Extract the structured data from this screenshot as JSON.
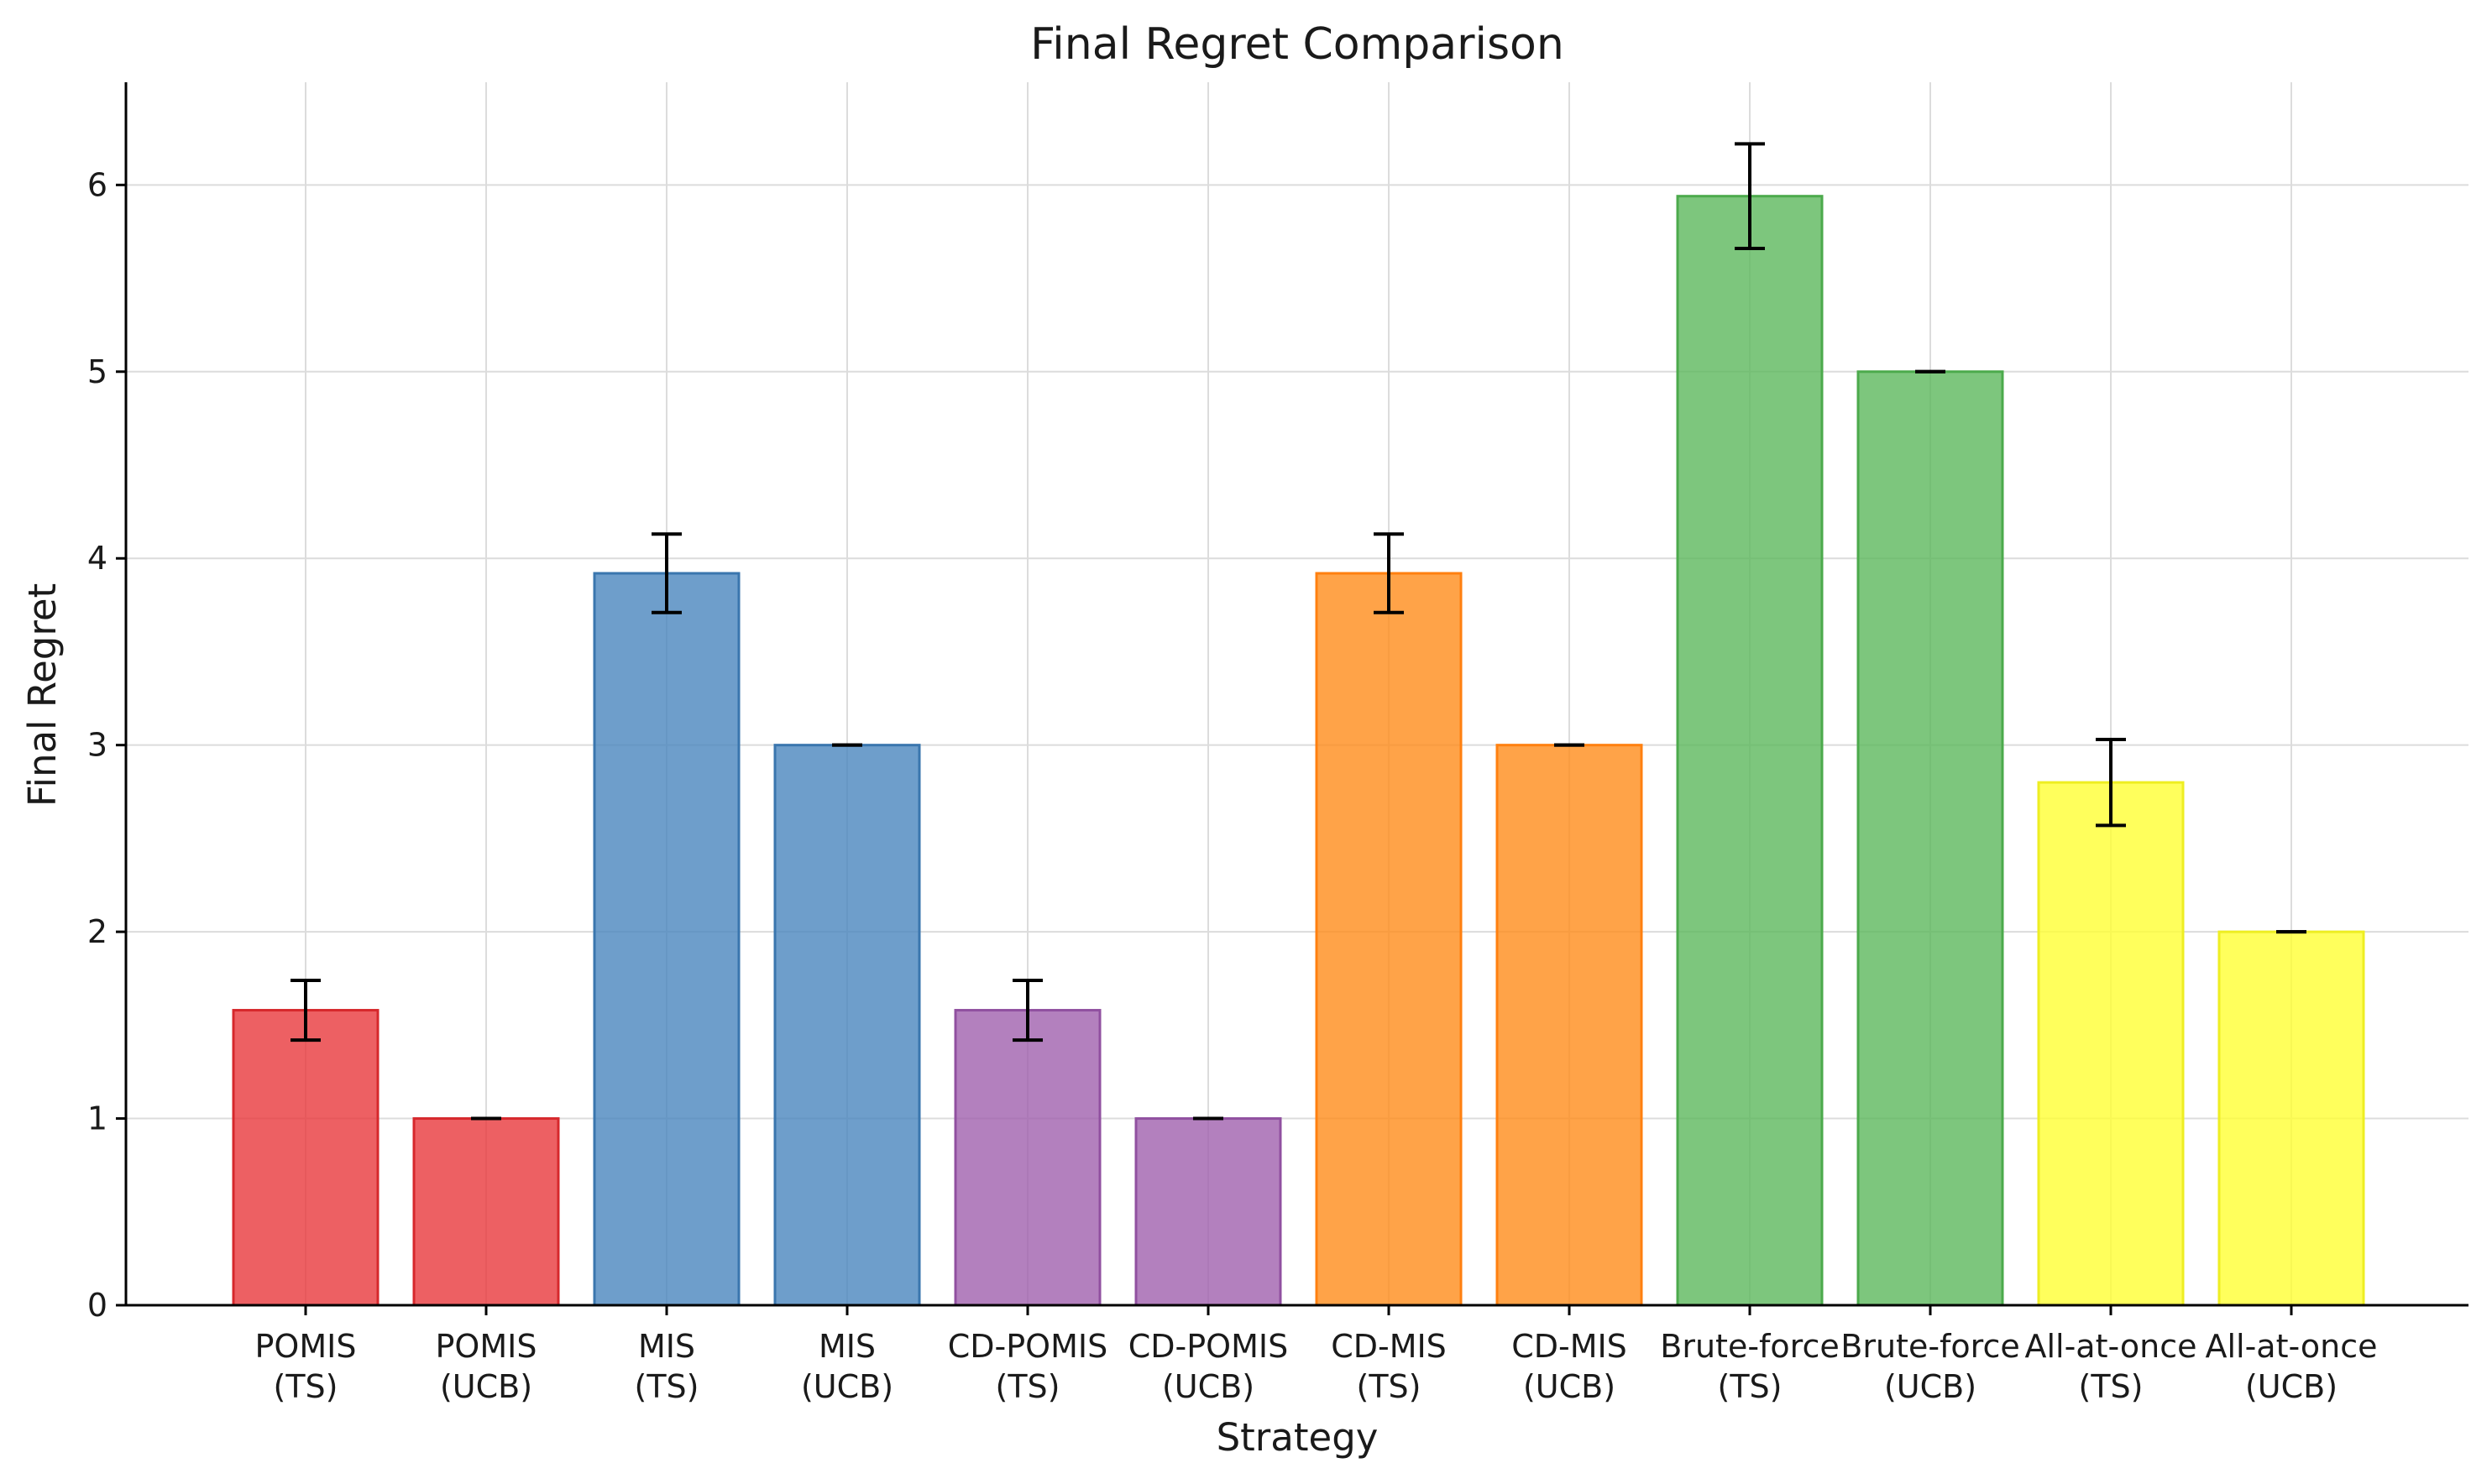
{
  "chart_data": {
    "type": "bar",
    "title": "Final Regret Comparison",
    "xlabel": "Strategy",
    "ylabel": "Final Regret",
    "ylim": [
      0,
      6.55
    ],
    "yticks": [
      0,
      1,
      2,
      3,
      4,
      5,
      6
    ],
    "grid": true,
    "categories": [
      [
        "POMIS",
        "(TS)"
      ],
      [
        "POMIS",
        "(UCB)"
      ],
      [
        "MIS",
        "(TS)"
      ],
      [
        "MIS",
        "(UCB)"
      ],
      [
        "CD-POMIS",
        "(TS)"
      ],
      [
        "CD-POMIS",
        "(UCB)"
      ],
      [
        "CD-MIS",
        "(TS)"
      ],
      [
        "CD-MIS",
        "(UCB)"
      ],
      [
        "Brute-force",
        "(TS)"
      ],
      [
        "Brute-force",
        "(UCB)"
      ],
      [
        "All-at-once",
        "(TS)"
      ],
      [
        "All-at-once",
        "(UCB)"
      ]
    ],
    "values": [
      1.58,
      1.0,
      3.92,
      3.0,
      1.58,
      1.0,
      3.92,
      3.0,
      5.94,
      5.0,
      2.8,
      2.0
    ],
    "errors": [
      0.16,
      0.0,
      0.21,
      0.0,
      0.16,
      0.0,
      0.21,
      0.0,
      0.28,
      0.0,
      0.23,
      0.0
    ],
    "colors": [
      "#e8383c",
      "#e8383c",
      "#4a86be",
      "#4a86be",
      "#a060ae",
      "#a060ae",
      "#ff8c1a",
      "#ff8c1a",
      "#5cb85c",
      "#5cb85c",
      "#ffff33",
      "#ffff33"
    ],
    "edge_colors": [
      "#d6282c",
      "#d6282c",
      "#3a76ae",
      "#3a76ae",
      "#9050a0",
      "#9050a0",
      "#ff8010",
      "#ff8010",
      "#4caa4c",
      "#4caa4c",
      "#eeee22",
      "#eeee22"
    ]
  }
}
